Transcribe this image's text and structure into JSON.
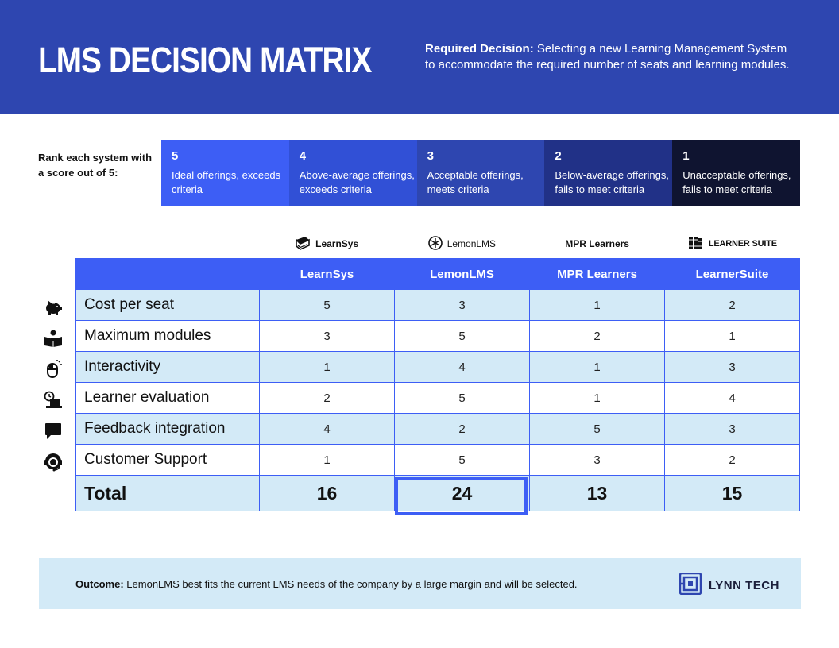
{
  "header": {
    "title": "LMS DECISION MATRIX",
    "decision_label": "Required Decision:",
    "decision_text": "Selecting a new Learning Management System to accommodate the required number of seats and learning modules."
  },
  "rank": {
    "label": "Rank each system with a score out of 5:",
    "scale": [
      {
        "score": "5",
        "desc": "Ideal offerings, exceeds criteria",
        "color": "#3d5ef5"
      },
      {
        "score": "4",
        "desc": "Above-average offerings, exceeds criteria",
        "color": "#3150d6"
      },
      {
        "score": "3",
        "desc": "Acceptable offerings, meets criteria",
        "color": "#2e46b0"
      },
      {
        "score": "2",
        "desc": "Below-average offerings, fails to meet criteria",
        "color": "#213187"
      },
      {
        "score": "1",
        "desc": "Unacceptable offerings, fails to meet criteria",
        "color": "#0f1430"
      }
    ]
  },
  "brands": [
    {
      "name": "LearnSys",
      "icon": "book-icon"
    },
    {
      "name": "LemonLMS",
      "icon": "lemon-slice-icon"
    },
    {
      "name": "MPR Learners",
      "icon": ""
    },
    {
      "name": "LEARNER SUITE",
      "icon": "books-icon"
    }
  ],
  "matrix": {
    "columns": [
      "LearnSys",
      "LemonLMS",
      "MPR Learners",
      "LearnerSuite"
    ],
    "rows": [
      {
        "criterion": "Cost per seat",
        "icon": "piggy-bank-icon",
        "scores": [
          "5",
          "3",
          "1",
          "2"
        ]
      },
      {
        "criterion": "Maximum modules",
        "icon": "reader-icon",
        "scores": [
          "3",
          "5",
          "2",
          "1"
        ]
      },
      {
        "criterion": "Interactivity",
        "icon": "mouse-click-icon",
        "scores": [
          "1",
          "4",
          "1",
          "3"
        ]
      },
      {
        "criterion": "Learner evaluation",
        "icon": "timed-laptop-icon",
        "scores": [
          "2",
          "5",
          "1",
          "4"
        ]
      },
      {
        "criterion": "Feedback integration",
        "icon": "chat-bubble-icon",
        "scores": [
          "4",
          "2",
          "5",
          "3"
        ]
      },
      {
        "criterion": "Customer Support",
        "icon": "headset-icon",
        "scores": [
          "1",
          "5",
          "3",
          "2"
        ]
      }
    ],
    "total_label": "Total",
    "totals": [
      "16",
      "24",
      "13",
      "15"
    ],
    "highlight_column": "LemonLMS"
  },
  "outcome": {
    "label": "Outcome:",
    "text": "LemonLMS best fits the current LMS needs of the company by a large margin and will be selected."
  },
  "logo": {
    "name": "LYNN TECH",
    "icon": "lynn-tech-logo-icon"
  },
  "colors": {
    "header_bg": "#2e46b0",
    "accent": "#3d5ef5",
    "light_row": "#d3eaf7",
    "dark_text": "#111111"
  }
}
